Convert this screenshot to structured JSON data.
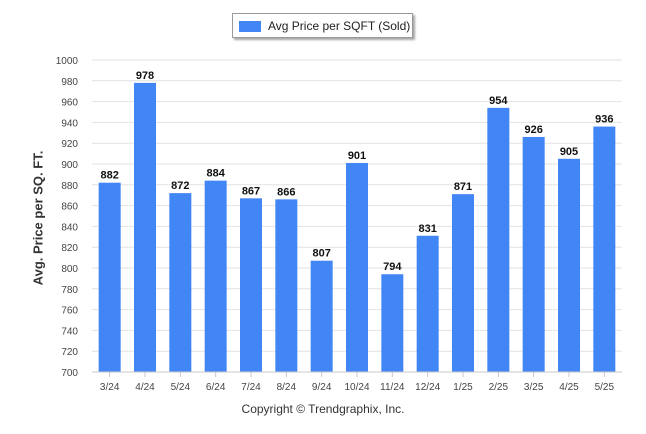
{
  "chart_data": {
    "type": "bar",
    "categories": [
      "3/24",
      "4/24",
      "5/24",
      "6/24",
      "7/24",
      "8/24",
      "9/24",
      "10/24",
      "11/24",
      "12/24",
      "1/25",
      "2/25",
      "3/25",
      "4/25",
      "5/25"
    ],
    "series": [
      {
        "name": "Avg Price per SQFT (Sold)",
        "values": [
          882,
          978,
          872,
          884,
          867,
          866,
          807,
          901,
          794,
          831,
          871,
          954,
          926,
          905,
          936
        ]
      }
    ],
    "ylabel": "Avg. Price per SQ. FT.",
    "ylim": [
      700,
      1000
    ],
    "yticks": [
      700,
      720,
      740,
      760,
      780,
      800,
      820,
      840,
      860,
      880,
      900,
      920,
      940,
      960,
      980,
      1000
    ],
    "legend_position": "top-center",
    "grid": true,
    "data_labels": true,
    "bar_color": "#4285f4"
  },
  "footer": {
    "copyright": "Copyright © Trendgraphix, Inc."
  }
}
